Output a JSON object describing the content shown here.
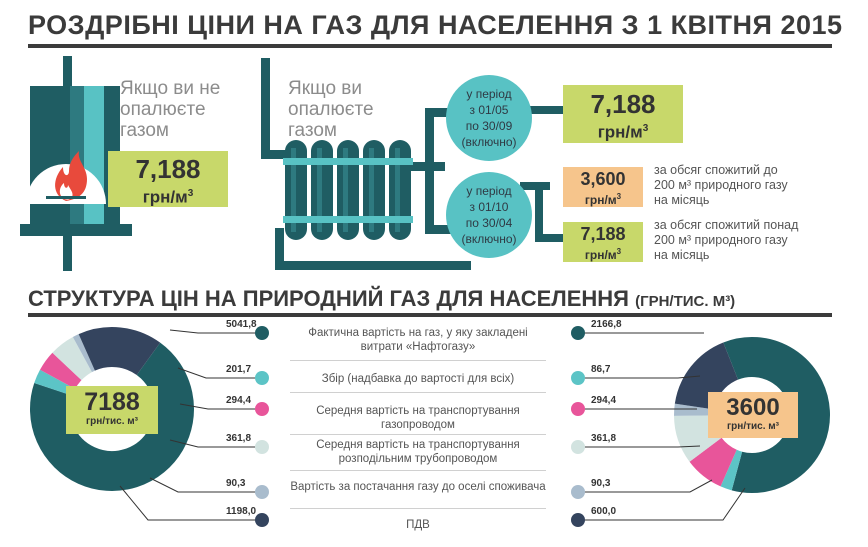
{
  "title": "РОЗДРІБНІ ЦІНИ НА ГАЗ ДЛЯ НАСЕЛЕННЯ З 1 КВІТНЯ 2015",
  "no_heating": {
    "label_lines": [
      "Якщо ви не",
      "опалюєте",
      "газом"
    ],
    "price": "7,188",
    "unit": "грн/м"
  },
  "heating": {
    "label_lines": [
      "Якщо ви",
      "опалюєте",
      "газом"
    ]
  },
  "period_summer": {
    "lines": [
      "у період",
      "з 01/05",
      "по 30/09",
      "(включно)"
    ],
    "price": "7,188",
    "unit": "грн/м"
  },
  "period_winter": {
    "lines": [
      "у період",
      "з 01/10",
      "по 30/04",
      "(включно)"
    ]
  },
  "winter_low": {
    "price": "3,600",
    "unit": "грн/м",
    "note_lines": [
      "за обсяг спожитий до",
      "200 м³ природного газу",
      "на місяць"
    ]
  },
  "winter_high": {
    "price": "7,188",
    "unit": "грн/м",
    "note_lines": [
      "за обсяг спожитий понад",
      "200 м³ природного газу",
      "на місяць"
    ]
  },
  "structure_title": "СТРУКТУРА ЦІН НА ПРИРОДНИЙ ГАЗ ДЛЯ НАСЕЛЕННЯ",
  "structure_unit": "(ГРН/ТИС. М³)",
  "legend": [
    {
      "label": "Фактична вартість на газ, у яку закладені витрати «Нафтогазу»",
      "color": "#1f5d63"
    },
    {
      "label": "Збір (надбавка до вартості для всіх)",
      "color": "#5cc4c6"
    },
    {
      "label": "Середня вартість на транспортування газопроводом",
      "color": "#e8559a"
    },
    {
      "label": "Середня вартість на транспортування розподільним трубопроводом",
      "color": "#d2e3e0"
    },
    {
      "label": "Вартість за постачання газу до оселі споживача",
      "color": "#a9bccd"
    },
    {
      "label": "ПДВ",
      "color": "#34445e"
    }
  ],
  "left_donut": {
    "total": "7188",
    "unit": "грн/тис. м³",
    "values": [
      "5041,8",
      "201,7",
      "294,4",
      "361,8",
      "90,3",
      "1198,0"
    ]
  },
  "right_donut": {
    "total": "3600",
    "unit": "грн/тис. м³",
    "values": [
      "2166,8",
      "86,7",
      "294,4",
      "361,8",
      "90,3",
      "600,0"
    ]
  },
  "chart_data": [
    {
      "type": "pie",
      "total": 7188,
      "unit": "грн/тис. м³",
      "categories": [
        "Фактична вартість на газ, у яку закладені витрати «Нафтогазу»",
        "Збір (надбавка до вартості для всіх)",
        "Середня вартість на транспортування газопроводом",
        "Середня вартість на транспортування розподільним трубопроводом",
        "Вартість за постачання газу до оселі споживача",
        "ПДВ"
      ],
      "values": [
        5041.8,
        201.7,
        294.4,
        361.8,
        90.3,
        1198.0
      ]
    },
    {
      "type": "pie",
      "total": 3600,
      "unit": "грн/тис. м³",
      "categories": [
        "Фактична вартість на газ, у яку закладені витрати «Нафтогазу»",
        "Збір (надбавка до вартості для всіх)",
        "Середня вартість на транспортування газопроводом",
        "Середня вартість на транспортування розподільним трубопроводом",
        "Вартість за постачання газу до оселі споживача",
        "ПДВ"
      ],
      "values": [
        2166.8,
        86.7,
        294.4,
        361.8,
        90.3,
        600.0
      ]
    }
  ]
}
